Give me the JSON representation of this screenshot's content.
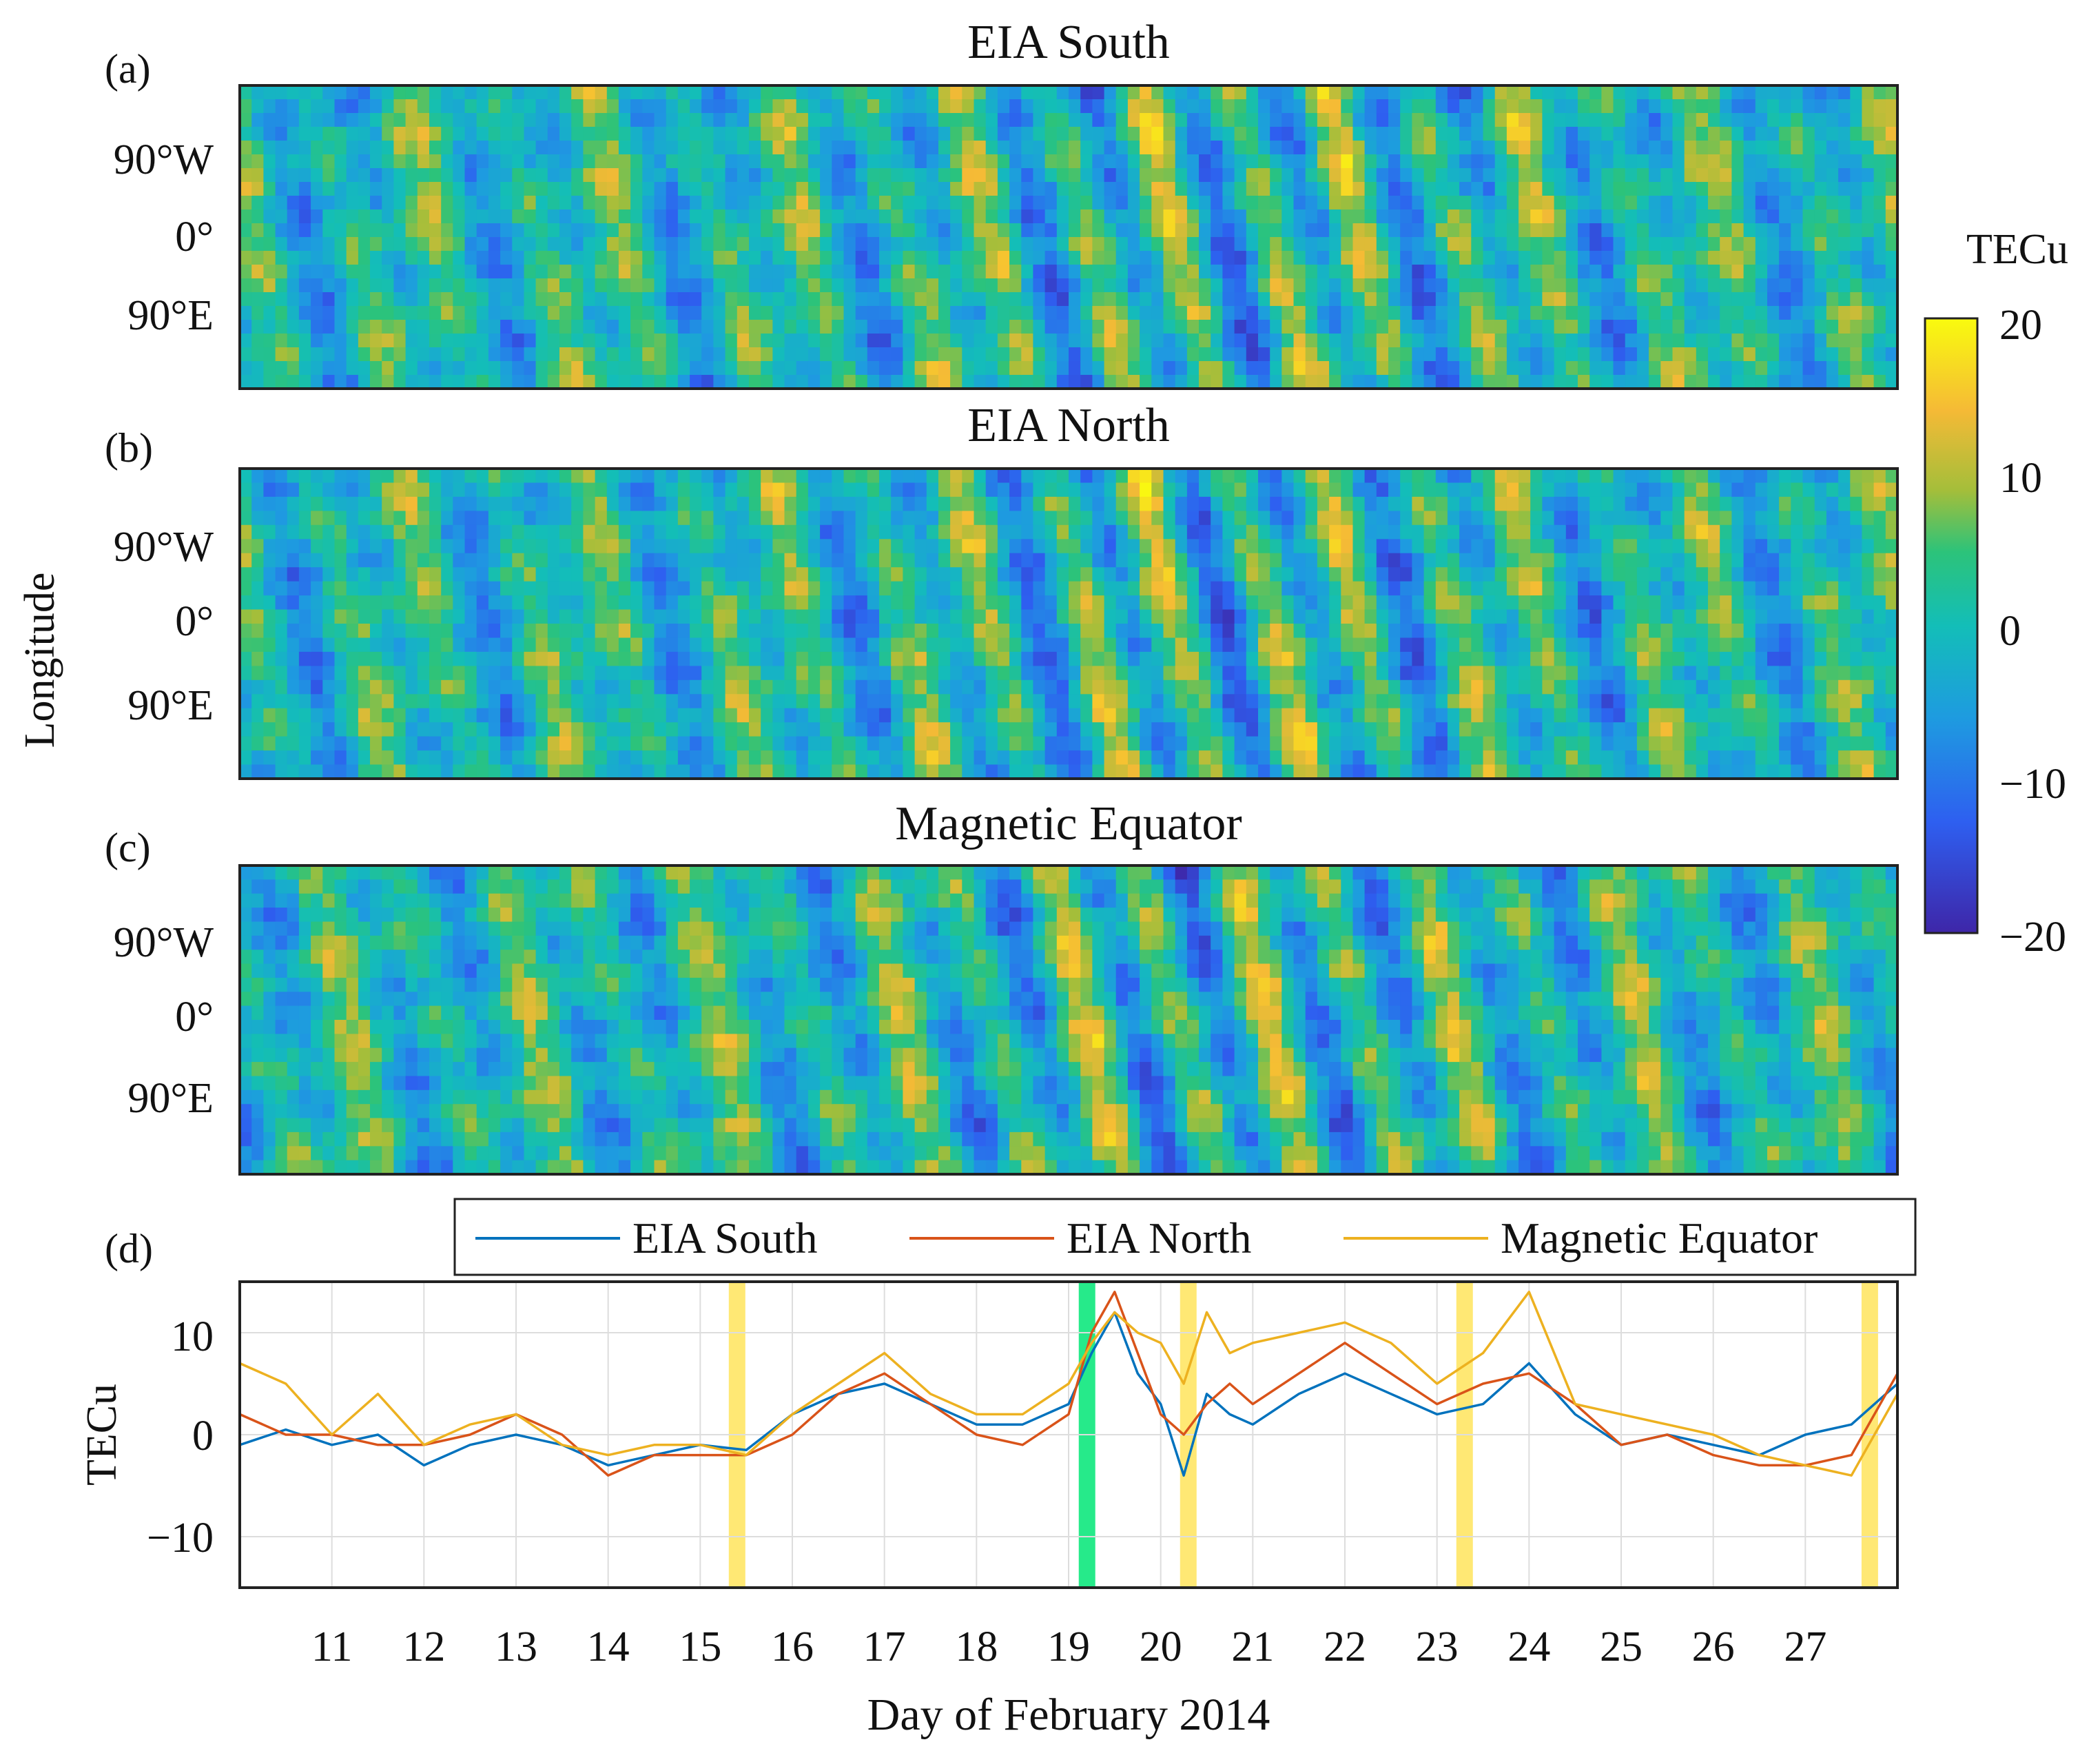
{
  "figure": {
    "ylabel_shared": "Longitude",
    "colorbar": {
      "title": "TECu",
      "min": -20,
      "max": 20,
      "ticks": [
        "20",
        "10",
        "0",
        "−10",
        "−20"
      ]
    },
    "lon_ticks": [
      "90°W",
      "0°",
      "90°E"
    ],
    "xlabel": "Day of February 2014",
    "x_ticks": [
      "11",
      "12",
      "13",
      "14",
      "15",
      "16",
      "17",
      "18",
      "19",
      "20",
      "21",
      "22",
      "23",
      "24",
      "25",
      "26",
      "27"
    ]
  },
  "chart_data": [
    {
      "type": "heatmap",
      "label": "(a)",
      "title": "EIA South",
      "ylabel": "Longitude",
      "xlim": [
        10,
        28
      ],
      "clim": [
        -20,
        20
      ],
      "units": "TECu",
      "seed": 11
    },
    {
      "type": "heatmap",
      "label": "(b)",
      "title": "EIA North",
      "ylabel": "Longitude",
      "xlim": [
        10,
        28
      ],
      "clim": [
        -20,
        20
      ],
      "units": "TECu",
      "seed": 23
    },
    {
      "type": "heatmap",
      "label": "(c)",
      "title": "Magnetic Equator",
      "ylabel": "Longitude",
      "xlim": [
        10,
        28
      ],
      "clim": [
        -20,
        20
      ],
      "units": "TECu",
      "seed": 37
    },
    {
      "type": "line",
      "label": "(d)",
      "ylabel": "TECu",
      "xlabel": "Day of February 2014",
      "xlim": [
        10,
        28
      ],
      "ylim": [
        -15,
        15
      ],
      "yticks": [
        "10",
        "0",
        "−10"
      ],
      "x": [
        10,
        10.5,
        11,
        11.5,
        12,
        12.5,
        13,
        13.5,
        14,
        14.5,
        15,
        15.5,
        16,
        16.5,
        17,
        17.5,
        18,
        18.5,
        19,
        19.25,
        19.5,
        19.75,
        20,
        20.25,
        20.5,
        20.75,
        21,
        21.5,
        22,
        22.5,
        23,
        23.5,
        24,
        24.5,
        25,
        25.5,
        26,
        26.5,
        27,
        27.5,
        28
      ],
      "series": [
        {
          "name": "EIA South",
          "color": "#0072BD",
          "values": [
            -1,
            0.5,
            -1,
            0,
            -3,
            -1,
            0,
            -1,
            -3,
            -2,
            -1,
            -1.5,
            2,
            4,
            5,
            3,
            1,
            1,
            3,
            8,
            12,
            6,
            3,
            -4,
            4,
            2,
            1,
            4,
            6,
            4,
            2,
            3,
            7,
            2,
            -1,
            0,
            -1,
            -2,
            0,
            1,
            5
          ]
        },
        {
          "name": "EIA North",
          "color": "#D95319",
          "values": [
            2,
            0,
            0,
            -1,
            -1,
            0,
            2,
            0,
            -4,
            -2,
            -2,
            -2,
            0,
            4,
            6,
            3,
            0,
            -1,
            2,
            10,
            14,
            8,
            2,
            0,
            3,
            5,
            3,
            6,
            9,
            6,
            3,
            5,
            6,
            3,
            -1,
            0,
            -2,
            -3,
            -3,
            -2,
            6
          ]
        },
        {
          "name": "Magnetic Equator",
          "color": "#EDB120",
          "values": [
            7,
            5,
            0,
            4,
            -1,
            1,
            2,
            -1,
            -2,
            -1,
            -1,
            -2,
            2,
            5,
            8,
            4,
            2,
            2,
            5,
            9,
            12,
            10,
            9,
            5,
            12,
            8,
            9,
            10,
            11,
            9,
            5,
            8,
            14,
            3,
            2,
            1,
            0,
            -2,
            -3,
            -4,
            4
          ]
        }
      ],
      "highlights": [
        {
          "day": 15.4,
          "color": "#FFE45C"
        },
        {
          "day": 19.2,
          "color": "#00E676"
        },
        {
          "day": 20.3,
          "color": "#FFE45C"
        },
        {
          "day": 23.3,
          "color": "#FFE45C"
        },
        {
          "day": 27.7,
          "color": "#FFE45C"
        }
      ]
    }
  ]
}
